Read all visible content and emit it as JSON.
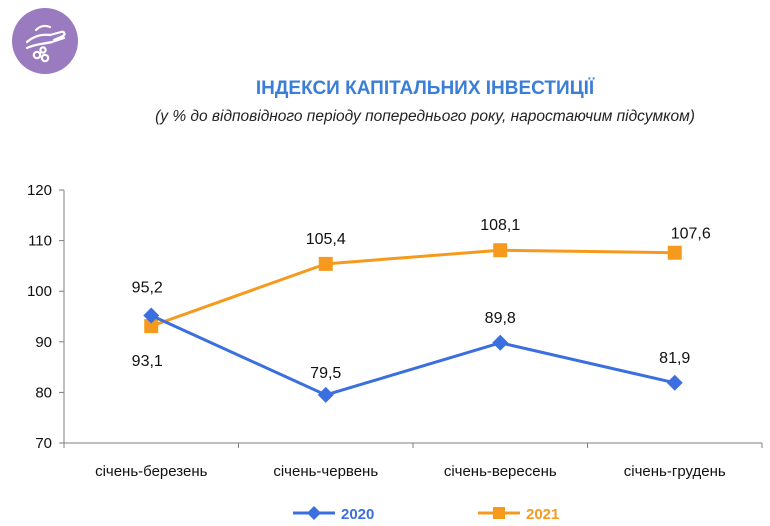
{
  "header": {
    "logo_icon": "hand-coins-icon",
    "logo_color": "#9b7bbf"
  },
  "chart_data": {
    "type": "line",
    "title": "ІНДЕКСИ КАПІТАЛЬНИХ ІНВЕСТИЦІЇ",
    "subtitle": "(у % до відповідного періоду попереднього року, наростаючим підсумком)",
    "categories": [
      "січень-березень",
      "січень-червень",
      "січень-вересень",
      "січень-грудень"
    ],
    "ylim": [
      70,
      120
    ],
    "yticks": [
      70,
      80,
      90,
      100,
      110,
      120
    ],
    "grid": false,
    "legend": "bottom",
    "series": [
      {
        "name": "2020",
        "values": [
          95.2,
          79.5,
          89.8,
          81.9
        ],
        "labels": [
          "95,2",
          "79,5",
          "89,8",
          "81,9"
        ],
        "color": "#3b6fe0",
        "marker": "diamond"
      },
      {
        "name": "2021",
        "values": [
          93.1,
          105.4,
          108.1,
          107.6
        ],
        "labels": [
          "93,1",
          "105,4",
          "108,1",
          "107,6"
        ],
        "color": "#f59a1c",
        "marker": "square"
      }
    ]
  }
}
